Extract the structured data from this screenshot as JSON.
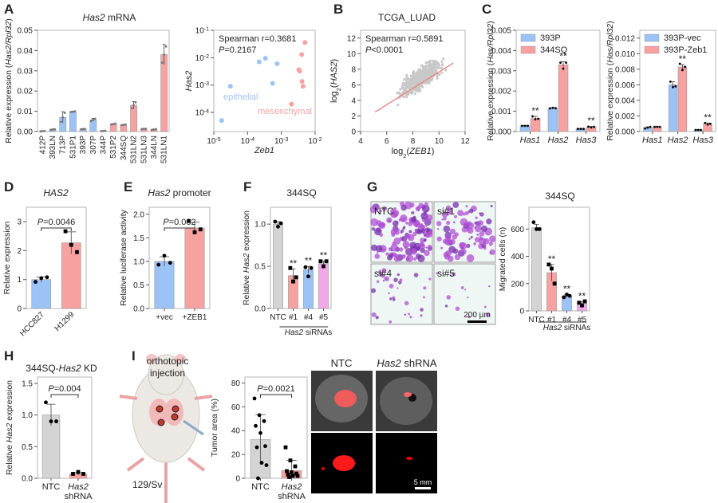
{
  "panels": {
    "A": "A",
    "B": "B",
    "C": "C",
    "D": "D",
    "E": "E",
    "F": "F",
    "G": "G",
    "H": "H",
    "I": "I"
  },
  "colors": {
    "blue": "#9cc3f5",
    "red": "#f7a1a1",
    "gray": "#d4d4d4",
    "pink": "#f2a8e8",
    "line": "#f08080",
    "scatter": "#c8c8c8"
  },
  "chart_data": [
    {
      "id": "A1",
      "type": "bar",
      "title": [
        {
          "t": "Has2",
          "i": true
        },
        {
          "t": " mRNA"
        }
      ],
      "ylabel": [
        {
          "t": "Relative expression ("
        },
        {
          "t": "Has2/Rpl32",
          "i": true
        },
        {
          "t": ")"
        }
      ],
      "ylim": [
        0,
        0.05
      ],
      "yticks": [
        0,
        0.01,
        0.02,
        0.03,
        0.04,
        0.05
      ],
      "ytick_labels": [
        "0.00",
        "0.01",
        "0.02",
        "0.03",
        "0.04",
        "0.05"
      ],
      "categories": [
        "412P",
        "393LN",
        "713P",
        "531P1",
        "393P",
        "307P",
        "344P",
        "531P2",
        "344SQ",
        "531LN2",
        "531LN3",
        "344LN",
        "531LN1"
      ],
      "xrotate": -90,
      "colors": [
        "#9cc3f5",
        "#9cc3f5",
        "#9cc3f5",
        "#9cc3f5",
        "#9cc3f5",
        "#9cc3f5",
        "#9cc3f5",
        "#f7a1a1",
        "#f7a1a1",
        "#f7a1a1",
        "#f7a1a1",
        "#f7a1a1",
        "#f7a1a1"
      ],
      "series": [
        {
          "name": "Has2",
          "values": [
            0.0002,
            0.001,
            0.007,
            0.0098,
            0.0012,
            0.0058,
            0.0003,
            0.0037,
            0.0033,
            0.013,
            0.0013,
            0.001,
            0.038
          ],
          "sd": [
            0.0001,
            0.0002,
            0.0028,
            0.0002,
            0.0001,
            0.0007,
            0.0001,
            0.0002,
            0.0002,
            0.0018,
            0.0001,
            0.0002,
            0.005
          ]
        }
      ]
    },
    {
      "id": "A2",
      "type": "scatter",
      "scale": "log",
      "xlabel": [
        {
          "t": "Zeb1",
          "i": true
        }
      ],
      "ylabel": [
        {
          "t": "Has2",
          "i": true
        }
      ],
      "xlim": [
        -5,
        -2
      ],
      "ylim": [
        -4.7,
        -1
      ],
      "xticks": [
        -5,
        -4,
        -3,
        -2
      ],
      "yticks": [
        -4,
        -3,
        -2,
        -1
      ],
      "annotation": [
        [
          {
            "t": "Spearman r=0.3681"
          }
        ],
        [
          {
            "t": "P",
            "i": true
          },
          {
            "t": "=0.2167"
          }
        ]
      ],
      "series": [
        {
          "name": "epithelial",
          "color": "#9cc3f5",
          "points": [
            [
              1.7e-05,
              5e-05
            ],
            [
              3.1e-05,
              0.0009
            ],
            [
              0.00022,
              0.007
            ],
            [
              0.00034,
              0.0095
            ],
            [
              0.00075,
              0.006
            ],
            [
              0.00055,
              0.00115
            ]
          ]
        },
        {
          "name": "mesenchymal",
          "color": "#f7a1a1",
          "points": [
            [
              0.005,
              0.036
            ],
            [
              0.004,
              0.013
            ],
            [
              0.0033,
              0.0036
            ],
            [
              0.0035,
              0.0032
            ],
            [
              0.0041,
              0.00135
            ],
            [
              0.0044,
              0.0009
            ],
            [
              0.002,
              0.0002
            ]
          ]
        }
      ]
    },
    {
      "id": "B",
      "type": "scatter",
      "title": [
        {
          "t": "TCGA_LUAD"
        }
      ],
      "xlabel": [
        {
          "t": "log"
        },
        {
          "t": "2",
          "sub": true
        },
        {
          "t": "("
        },
        {
          "t": "ZEB1",
          "i": true
        },
        {
          "t": ")"
        }
      ],
      "ylabel": [
        {
          "t": "log"
        },
        {
          "t": "2",
          "sub": true
        },
        {
          "t": "("
        },
        {
          "t": "HAS2",
          "i": true
        },
        {
          "t": ")"
        }
      ],
      "xlim": [
        4,
        12
      ],
      "ylim": [
        0,
        13
      ],
      "xticks": [
        4,
        6,
        8,
        10,
        12
      ],
      "yticks": [
        0,
        2,
        4,
        6,
        8,
        10,
        12
      ],
      "annotation": [
        [
          {
            "t": "Spearman r=0.5891"
          }
        ],
        [
          {
            "t": "P",
            "i": true
          },
          {
            "t": "<0.0001"
          }
        ]
      ],
      "fit_line": [
        [
          5.1,
          2.5
        ],
        [
          11.1,
          8.8
        ]
      ],
      "cloud_center": [
        8.6,
        6.8
      ]
    },
    {
      "id": "C1",
      "type": "bar",
      "ylabel": [
        {
          "t": "Relative expression ("
        },
        {
          "t": "Has/Rpl32",
          "i": true
        },
        {
          "t": ")"
        }
      ],
      "ylim": [
        0,
        0.005
      ],
      "yticks": [
        0,
        0.001,
        0.002,
        0.003,
        0.004,
        0.005
      ],
      "ytick_labels": [
        "0.000",
        "0.001",
        "0.002",
        "0.003",
        "0.004",
        "0.005"
      ],
      "categories": [
        "Has1",
        "Has2",
        "Has3"
      ],
      "xitalic": true,
      "legend": true,
      "series": [
        {
          "name": "393P",
          "color": "#9cc3f5",
          "values": [
            0.00028,
            0.00115,
            0.00013
          ],
          "sd": [
            1e-05,
            3e-05,
            1e-05
          ],
          "points": [
            [
              0.00028,
              0.00028,
              0.00028
            ],
            [
              0.00114,
              0.00117,
              0.00115
            ],
            [
              0.00013,
              0.00013,
              0.00013
            ]
          ],
          "sig": [
            "",
            "",
            ""
          ]
        },
        {
          "name": "344SQ",
          "color": "#f7a1a1",
          "values": [
            0.00065,
            0.0033,
            0.00022
          ],
          "sd": [
            0.0001,
            0.00015,
            3e-05
          ],
          "points": [
            [
              0.00075,
              0.0006,
              0.00063
            ],
            [
              0.0034,
              0.0031,
              0.0034
            ],
            [
              0.00024,
              0.0002,
              0.00023
            ]
          ],
          "sig": [
            "**",
            "**",
            "**"
          ]
        }
      ]
    },
    {
      "id": "C2",
      "type": "bar",
      "ylabel": [
        {
          "t": "Relative expression ("
        },
        {
          "t": "Has/Rpl32",
          "i": true
        },
        {
          "t": ")"
        }
      ],
      "ylim": [
        0,
        0.013
      ],
      "yticks": [
        0,
        0.002,
        0.004,
        0.006,
        0.008,
        0.01,
        0.012
      ],
      "ytick_labels": [
        "0.000",
        "0.002",
        "0.004",
        "0.006",
        "0.008",
        "0.010",
        "0.012"
      ],
      "categories": [
        "Has1",
        "Has2",
        "Has3"
      ],
      "xitalic": true,
      "legend": true,
      "series": [
        {
          "name": "393P-vec",
          "color": "#9cc3f5",
          "values": [
            0.0005,
            0.006,
            0.0002
          ],
          "sd": [
            0.0001,
            0.0004,
            2e-05
          ],
          "points": [
            [
              0.0004,
              0.0005,
              0.0006
            ],
            [
              0.0064,
              0.0057,
              0.0058
            ],
            [
              0.0002,
              0.0002,
              0.0002
            ]
          ],
          "sig": [
            "",
            "",
            ""
          ]
        },
        {
          "name": "393P-Zeb1",
          "color": "#f7a1a1",
          "values": [
            0.0006,
            0.0083,
            0.001
          ],
          "sd": [
            3e-05,
            0.0003,
            0.0001
          ],
          "points": [
            [
              0.0006,
              0.0006,
              0.0006
            ],
            [
              0.0087,
              0.0079,
              0.0083
            ],
            [
              0.0011,
              0.0009,
              0.001
            ]
          ],
          "sig": [
            "",
            "**",
            "**"
          ]
        }
      ]
    },
    {
      "id": "D",
      "type": "bar",
      "title": [
        {
          "t": "HAS2",
          "i": true
        }
      ],
      "ylabel": [
        {
          "t": "Relative expression"
        }
      ],
      "ylim": [
        0,
        3.5
      ],
      "yticks": [
        0,
        1,
        2,
        3
      ],
      "ytick_labels": [
        "0",
        "1",
        "2",
        "3"
      ],
      "categories": [
        "HCC827",
        "H1299"
      ],
      "xrotate": -45,
      "colors": [
        "#9cc3f5",
        "#f7a1a1"
      ],
      "pvalue": [
        {
          "t": "P",
          "i": true
        },
        {
          "t": "=0.0046"
        }
      ],
      "series": [
        {
          "name": "HAS2",
          "values": [
            1.0,
            2.27
          ],
          "sd": [
            0.09,
            0.38
          ],
          "points": [
            [
              0.92,
              1.05,
              1.08
            ],
            [
              2.67,
              2.2,
              1.95
            ]
          ]
        }
      ]
    },
    {
      "id": "E",
      "type": "bar",
      "title": [
        {
          "t": "Has2",
          "i": true
        },
        {
          "t": " promoter"
        }
      ],
      "ylabel": [
        {
          "t": "Relative luciferase activity"
        }
      ],
      "ylim": [
        0,
        2.15
      ],
      "yticks": [
        0,
        0.5,
        1.0,
        1.5,
        2.0
      ],
      "ytick_labels": [
        "0.0",
        "0.5",
        "1.0",
        "1.5",
        "2.0"
      ],
      "categories": [
        "+vec",
        "+ZEB1"
      ],
      "colors": [
        "#9cc3f5",
        "#f7a1a1"
      ],
      "pvalue": [
        {
          "t": "P",
          "i": true
        },
        {
          "t": "=0.002"
        }
      ],
      "series": [
        {
          "name": "Has2 promoter",
          "values": [
            1.0,
            1.71
          ],
          "sd": [
            0.1,
            0.12
          ],
          "points": [
            [
              0.93,
              1.12,
              0.97
            ],
            [
              1.86,
              1.62,
              1.68
            ]
          ]
        }
      ]
    },
    {
      "id": "F",
      "type": "bar",
      "title": [
        {
          "t": "344SQ"
        }
      ],
      "ylabel": [
        {
          "t": "Relative "
        },
        {
          "t": "Has2",
          "i": true
        },
        {
          "t": " expression"
        }
      ],
      "ylim": [
        0,
        1.2
      ],
      "yticks": [
        0,
        0.5,
        1.0
      ],
      "ytick_labels": [
        "0.0",
        "0.5",
        "1.0"
      ],
      "categories": [
        "NTC",
        "#1",
        "#4",
        "#5"
      ],
      "group_label": [
        {
          "t": "Has2",
          "i": true
        },
        {
          "t": " siRNAs"
        }
      ],
      "colors": [
        "#d4d4d4",
        "#f7a1a1",
        "#9cc3f5",
        "#f2a8e8"
      ],
      "series": [
        {
          "name": "Has2",
          "values": [
            1.0,
            0.39,
            0.46,
            0.53
          ],
          "sd": [
            0.03,
            0.08,
            0.04,
            0.03
          ],
          "points": [
            [
              1.03,
              0.97,
              1.01
            ],
            [
              0.48,
              0.32,
              0.37
            ],
            [
              0.49,
              0.38,
              0.48
            ],
            [
              0.56,
              0.5,
              0.56
            ]
          ],
          "sig": [
            "",
            "**",
            "**",
            "**"
          ]
        }
      ]
    },
    {
      "id": "G",
      "type": "bar",
      "title": [
        {
          "t": "344SQ"
        }
      ],
      "ylabel": [
        {
          "t": "Migrated cells (n)"
        }
      ],
      "ylim": [
        0,
        760
      ],
      "yticks": [
        0,
        200,
        400,
        600
      ],
      "ytick_labels": [
        "0",
        "200",
        "400",
        "600"
      ],
      "categories": [
        "NTC",
        "#1",
        "#4",
        "#5"
      ],
      "group_label": [
        {
          "t": "Has2",
          "i": true
        },
        {
          "t": " siRNAs"
        }
      ],
      "colors": [
        "#d4d4d4",
        "#f7a1a1",
        "#9cc3f5",
        "#f2a8e8"
      ],
      "series": [
        {
          "name": "Migrated cells",
          "values": [
            610,
            280,
            110,
            55
          ],
          "sd": [
            25,
            60,
            10,
            12
          ],
          "points": [
            [
              650,
              600,
              600
            ],
            [
              340,
              310,
              200
            ],
            [
              100,
              120,
              110
            ],
            [
              60,
              40,
              70
            ]
          ],
          "sig": [
            "",
            "**",
            "**",
            "**"
          ]
        }
      ]
    },
    {
      "id": "H",
      "type": "bar",
      "title": [
        {
          "t": "344SQ-"
        },
        {
          "t": "Has2",
          "i": true
        },
        {
          "t": " KD"
        }
      ],
      "ylabel": [
        {
          "t": "Relative "
        },
        {
          "t": "Has2",
          "i": true
        },
        {
          "t": " expression"
        }
      ],
      "ylim": [
        0,
        1.6
      ],
      "yticks": [
        0,
        0.5,
        1.0,
        1.5
      ],
      "ytick_labels": [
        "0.0",
        "0.5",
        "1.0",
        "1.5"
      ],
      "categories": [
        [
          {
            "t": "NTC"
          }
        ],
        [
          {
            "t": "Has2",
            "i": true
          },
          {
            "t": "|shRNA"
          }
        ]
      ],
      "colors": [
        "#d4d4d4",
        "#f7a1a1"
      ],
      "pvalue": [
        {
          "t": "P",
          "i": true
        },
        {
          "t": "=0.004"
        }
      ],
      "series": [
        {
          "name": "Has2",
          "values": [
            1.0,
            0.07
          ],
          "sd": [
            0.17,
            0.02
          ],
          "points": [
            [
              1.2,
              0.9,
              0.9
            ],
            [
              0.07,
              0.1,
              0.07
            ]
          ]
        }
      ]
    },
    {
      "id": "I",
      "type": "bar",
      "ylabel": [
        {
          "t": "Tumor area (%)"
        }
      ],
      "ylim": [
        0,
        85
      ],
      "yticks": [
        0,
        20,
        40,
        60,
        80
      ],
      "ytick_labels": [
        "0",
        "20",
        "40",
        "60",
        "80"
      ],
      "categories": [
        [
          {
            "t": "NTC"
          }
        ],
        [
          {
            "t": "Has2",
            "i": true
          },
          {
            "t": "|shRNA"
          }
        ]
      ],
      "colors": [
        "#d4d4d4",
        "#f7a1a1"
      ],
      "pvalue": [
        {
          "t": "P",
          "i": true
        },
        {
          "t": "=0.0021"
        }
      ],
      "series": [
        {
          "name": "Tumor area",
          "values": [
            32.5,
            6.5
          ],
          "sd": [
            21,
            8.5
          ],
          "points": [
            [
              67,
              53,
              48,
              44,
              38,
              27,
              26,
              13,
              11,
              0
            ],
            [
              26,
              15,
              10,
              6,
              5,
              4,
              3,
              2,
              2,
              1
            ]
          ]
        }
      ]
    }
  ],
  "G_images": {
    "labels": [
      "NTC",
      "si#1",
      "si#4",
      "si#5"
    ],
    "scale_bar": "200 µm",
    "density": [
      0.9,
      0.55,
      0.2,
      0.08
    ]
  },
  "I_illustration": {
    "title_line1": "orthotopic",
    "title_line2": "injection",
    "strain": "129/Sv"
  },
  "I_images": {
    "col1": "NTC",
    "col2_italic": "Has2",
    "col2_rest": " shRNA",
    "scale_bar": "5 mm"
  }
}
